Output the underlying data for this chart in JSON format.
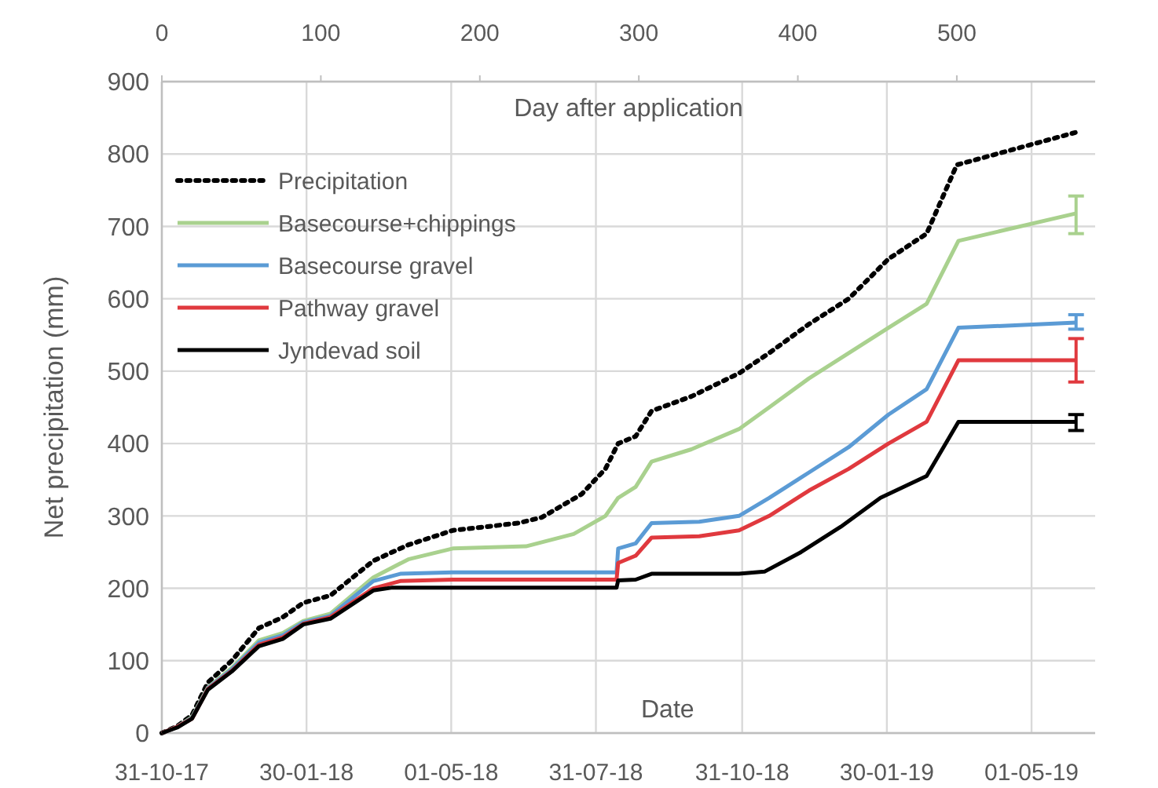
{
  "chart_data": {
    "type": "line",
    "xlabel": "Date",
    "x2label": "Day after application",
    "ylabel": "Net precipitation (mm)",
    "xlim": [
      "2017-10-31",
      "2019-06-10"
    ],
    "xticks": [
      {
        "value": "2017-10-31",
        "label": "31-10-17"
      },
      {
        "value": "2018-01-30",
        "label": "30-01-18"
      },
      {
        "value": "2018-05-01",
        "label": "01-05-18"
      },
      {
        "value": "2018-07-31",
        "label": "31-07-18"
      },
      {
        "value": "2018-10-31",
        "label": "31-10-18"
      },
      {
        "value": "2019-01-30",
        "label": "30-01-19"
      },
      {
        "value": "2019-05-01",
        "label": "01-05-19"
      }
    ],
    "x2lim": [
      0,
      587
    ],
    "x2ticks": [
      0,
      100,
      200,
      300,
      400,
      500
    ],
    "ylim": [
      0,
      900
    ],
    "yticks": [
      0,
      100,
      200,
      300,
      400,
      500,
      600,
      700,
      800,
      900
    ],
    "grid": true,
    "legend": "top left",
    "marker": "none",
    "series": [
      {
        "name": "Precipitation",
        "color": "#000000",
        "line_style": "dotted",
        "x": [
          "2017-10-31",
          "2017-11-10",
          "2017-11-19",
          "2017-11-29",
          "2017-12-14",
          "2017-12-31",
          "2018-01-15",
          "2018-01-28",
          "2018-02-14",
          "2018-03-13",
          "2018-04-04",
          "2018-05-02",
          "2018-06-12",
          "2018-06-27",
          "2018-07-22",
          "2018-08-06",
          "2018-08-14",
          "2018-08-25",
          "2018-09-04",
          "2018-09-29",
          "2018-10-29",
          "2018-11-17",
          "2018-12-12",
          "2019-01-06",
          "2019-01-31",
          "2019-02-24",
          "2019-03-15",
          "2019-05-29"
        ],
        "values": [
          0,
          10,
          25,
          70,
          100,
          145,
          160,
          180,
          190,
          238,
          260,
          280,
          290,
          298,
          330,
          365,
          400,
          410,
          445,
          465,
          497,
          525,
          565,
          600,
          655,
          690,
          785,
          830
        ]
      },
      {
        "name": "Basecourse+chippings",
        "color": "#a9d18e",
        "x": [
          "2017-10-31",
          "2017-11-10",
          "2017-11-19",
          "2017-11-29",
          "2017-12-14",
          "2017-12-31",
          "2018-01-15",
          "2018-01-28",
          "2018-02-14",
          "2018-03-13",
          "2018-04-04",
          "2018-05-02",
          "2018-06-17",
          "2018-07-17",
          "2018-08-06",
          "2018-08-14",
          "2018-08-25",
          "2018-09-04",
          "2018-09-29",
          "2018-10-29",
          "2018-11-17",
          "2018-12-12",
          "2019-01-06",
          "2019-01-31",
          "2019-02-24",
          "2019-03-16",
          "2019-05-29"
        ],
        "values": [
          0,
          9,
          22,
          63,
          90,
          128,
          138,
          155,
          165,
          215,
          240,
          255,
          258,
          275,
          300,
          325,
          340,
          375,
          392,
          420,
          450,
          490,
          525,
          560,
          593,
          680,
          718
        ],
        "errors": [
          null,
          null,
          null,
          null,
          null,
          null,
          null,
          null,
          null,
          null,
          null,
          null,
          null,
          null,
          null,
          null,
          null,
          null,
          null,
          null,
          null,
          null,
          null,
          null,
          null,
          null,
          [
            690,
            742
          ]
        ]
      },
      {
        "name": "Basecourse gravel",
        "color": "#5b9bd5",
        "x": [
          "2017-10-31",
          "2017-11-10",
          "2017-11-19",
          "2017-11-29",
          "2017-12-14",
          "2017-12-31",
          "2018-01-15",
          "2018-01-28",
          "2018-02-14",
          "2018-03-13",
          "2018-03-30",
          "2018-05-02",
          "2018-08-13",
          "2018-08-14",
          "2018-08-25",
          "2018-09-04",
          "2018-10-04",
          "2018-10-29",
          "2018-11-17",
          "2018-12-12",
          "2019-01-06",
          "2019-01-31",
          "2019-02-24",
          "2019-03-16",
          "2019-05-29"
        ],
        "values": [
          0,
          9,
          21,
          62,
          88,
          125,
          135,
          153,
          162,
          210,
          220,
          222,
          222,
          255,
          262,
          290,
          292,
          300,
          325,
          360,
          395,
          440,
          475,
          560,
          567
        ],
        "errors": [
          null,
          null,
          null,
          null,
          null,
          null,
          null,
          null,
          null,
          null,
          null,
          null,
          null,
          null,
          null,
          null,
          null,
          null,
          null,
          null,
          null,
          null,
          null,
          null,
          [
            558,
            578
          ]
        ]
      },
      {
        "name": "Pathway gravel",
        "color": "#e0393e",
        "x": [
          "2017-10-31",
          "2017-11-10",
          "2017-11-19",
          "2017-11-29",
          "2017-12-14",
          "2017-12-31",
          "2018-01-15",
          "2018-01-28",
          "2018-02-14",
          "2018-03-13",
          "2018-03-30",
          "2018-05-02",
          "2018-08-13",
          "2018-08-14",
          "2018-08-25",
          "2018-09-04",
          "2018-10-04",
          "2018-10-29",
          "2018-11-17",
          "2018-12-12",
          "2019-01-06",
          "2019-01-31",
          "2019-02-24",
          "2019-03-16",
          "2019-05-29"
        ],
        "values": [
          0,
          9,
          20,
          61,
          86,
          122,
          132,
          151,
          160,
          200,
          210,
          212,
          212,
          235,
          245,
          270,
          272,
          280,
          300,
          335,
          365,
          400,
          430,
          515,
          515
        ],
        "errors": [
          null,
          null,
          null,
          null,
          null,
          null,
          null,
          null,
          null,
          null,
          null,
          null,
          null,
          null,
          null,
          null,
          null,
          null,
          null,
          null,
          null,
          null,
          null,
          null,
          [
            485,
            545
          ]
        ]
      },
      {
        "name": "Jyndevad soil",
        "color": "#000000",
        "x": [
          "2017-10-31",
          "2017-11-10",
          "2017-11-19",
          "2017-11-29",
          "2017-12-14",
          "2017-12-31",
          "2018-01-15",
          "2018-01-28",
          "2018-02-14",
          "2018-03-13",
          "2018-03-25",
          "2018-05-02",
          "2018-08-13",
          "2018-08-14",
          "2018-08-25",
          "2018-09-04",
          "2018-10-29",
          "2018-11-14",
          "2018-12-07",
          "2019-01-01",
          "2019-01-26",
          "2019-02-24",
          "2019-03-16",
          "2019-05-29"
        ],
        "values": [
          0,
          8,
          20,
          60,
          85,
          120,
          130,
          150,
          158,
          197,
          201,
          201,
          201,
          211,
          212,
          220,
          220,
          223,
          250,
          285,
          325,
          355,
          430,
          430
        ],
        "errors": [
          null,
          null,
          null,
          null,
          null,
          null,
          null,
          null,
          null,
          null,
          null,
          null,
          null,
          null,
          null,
          null,
          null,
          null,
          null,
          null,
          null,
          null,
          null,
          [
            418,
            440
          ]
        ]
      }
    ]
  }
}
